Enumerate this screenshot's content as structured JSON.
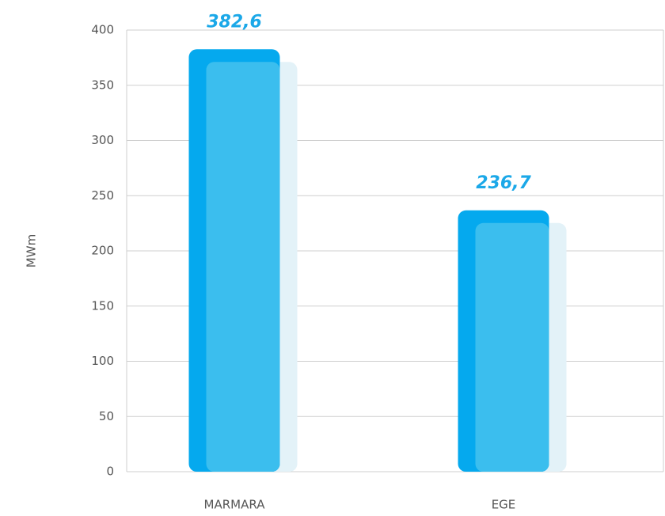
{
  "chart_data": {
    "type": "bar",
    "categories": [
      "MARMARA",
      "EGE"
    ],
    "values": [
      382.6,
      236.7
    ],
    "value_labels": [
      "382,6",
      "236,7"
    ],
    "color": "#05a9ee",
    "ylabel": "MWm",
    "ylim": [
      0,
      400
    ],
    "yticks": [
      0,
      50,
      100,
      150,
      200,
      250,
      300,
      350,
      400
    ],
    "grid": true
  }
}
